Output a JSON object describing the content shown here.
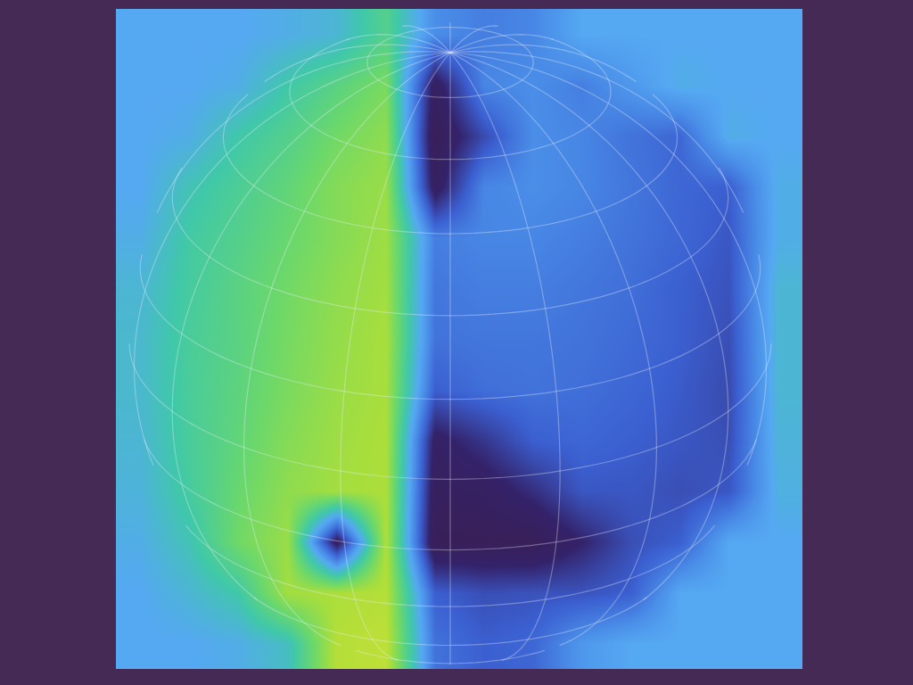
{
  "chart_data": {
    "type": "heatmap",
    "tick_labels": false,
    "zlim": [
      0,
      1
    ],
    "z": [
      [
        0.5,
        0.5,
        0.5,
        0.52,
        0.55,
        0.68,
        0.42,
        0.38,
        0.4,
        0.5,
        0.5,
        0.5,
        0.5,
        0.5
      ],
      [
        0.5,
        0.5,
        0.52,
        0.62,
        0.7,
        0.78,
        0.1,
        0.4,
        0.42,
        0.38,
        0.45,
        0.52,
        0.5,
        0.5
      ],
      [
        0.5,
        0.52,
        0.62,
        0.68,
        0.76,
        0.82,
        0.05,
        0.25,
        0.42,
        0.4,
        0.35,
        0.32,
        0.52,
        0.5
      ],
      [
        0.5,
        0.6,
        0.66,
        0.72,
        0.8,
        0.84,
        0.1,
        0.4,
        0.42,
        0.4,
        0.36,
        0.32,
        0.3,
        0.52
      ],
      [
        0.52,
        0.63,
        0.68,
        0.74,
        0.8,
        0.85,
        0.38,
        0.4,
        0.4,
        0.38,
        0.35,
        0.32,
        0.28,
        0.52
      ],
      [
        0.55,
        0.64,
        0.7,
        0.76,
        0.82,
        0.86,
        0.36,
        0.38,
        0.38,
        0.36,
        0.34,
        0.3,
        0.27,
        0.55
      ],
      [
        0.56,
        0.65,
        0.7,
        0.77,
        0.83,
        0.87,
        0.35,
        0.36,
        0.36,
        0.35,
        0.33,
        0.3,
        0.26,
        0.55
      ],
      [
        0.56,
        0.65,
        0.71,
        0.78,
        0.84,
        0.87,
        0.3,
        0.34,
        0.35,
        0.34,
        0.32,
        0.29,
        0.25,
        0.55
      ],
      [
        0.55,
        0.65,
        0.72,
        0.8,
        0.85,
        0.88,
        0.12,
        0.2,
        0.3,
        0.32,
        0.3,
        0.28,
        0.26,
        0.54
      ],
      [
        0.54,
        0.64,
        0.74,
        0.82,
        0.86,
        0.88,
        0.08,
        0.1,
        0.18,
        0.28,
        0.28,
        0.26,
        0.28,
        0.53
      ],
      [
        0.52,
        0.6,
        0.76,
        0.84,
        0.1,
        0.88,
        0.05,
        0.05,
        0.05,
        0.15,
        0.26,
        0.3,
        0.5,
        0.5
      ],
      [
        0.5,
        0.55,
        0.62,
        0.86,
        0.88,
        0.9,
        0.3,
        0.26,
        0.27,
        0.27,
        0.3,
        0.5,
        0.5,
        0.5
      ],
      [
        0.5,
        0.5,
        0.52,
        0.58,
        0.9,
        0.92,
        0.35,
        0.3,
        0.32,
        0.45,
        0.5,
        0.5,
        0.5,
        0.5
      ]
    ]
  }
}
